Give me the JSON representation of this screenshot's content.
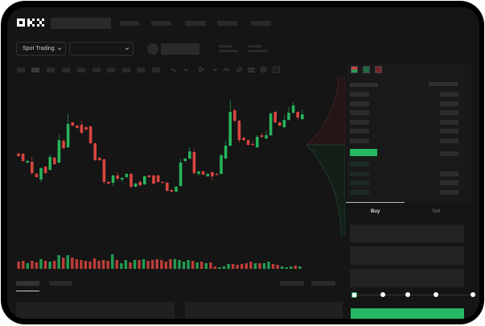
{
  "header": {
    "logo": "OKX",
    "nav_item_count": 5
  },
  "market": {
    "mode_label": "Spot Trading",
    "mode_chevron": "chevron-down-icon",
    "pair_chevron": "chevron-down-icon"
  },
  "toolbar": {
    "icons": [
      "indicator-icon",
      "chevron-down-icon",
      "draw-icon",
      "chevron-down-icon",
      "wave-icon",
      "ruler-icon",
      "camera-icon",
      "settings-icon",
      "fullscreen-icon"
    ]
  },
  "colors": {
    "up": "#27b35a",
    "down": "#d9453f",
    "accent": "#25b862",
    "bg": "#151515"
  },
  "candles": [
    [
      68,
      70,
      64,
      65
    ],
    [
      68,
      69,
      58,
      59
    ],
    [
      57,
      60,
      56,
      59
    ],
    [
      58,
      64,
      42,
      44
    ],
    [
      43,
      44,
      38,
      39
    ],
    [
      36,
      51,
      33,
      50
    ],
    [
      52,
      53,
      43,
      44
    ],
    [
      48,
      67,
      47,
      64
    ],
    [
      63,
      64,
      54,
      55
    ],
    [
      57,
      92,
      56,
      85
    ],
    [
      84,
      87,
      74,
      75
    ],
    [
      76,
      118,
      75,
      105
    ],
    [
      107,
      108,
      102,
      103
    ],
    [
      103,
      104,
      99,
      100
    ],
    [
      104,
      109,
      92,
      94
    ],
    [
      101,
      102,
      97,
      98
    ],
    [
      102,
      103,
      80,
      81
    ],
    [
      81,
      82,
      59,
      60
    ],
    [
      63,
      64,
      59,
      60
    ],
    [
      61,
      62,
      30,
      33
    ],
    [
      33,
      34,
      30,
      31
    ],
    [
      32,
      42,
      28,
      41
    ],
    [
      41,
      45,
      35,
      37
    ],
    [
      36,
      39,
      33,
      38
    ],
    [
      39,
      44,
      38,
      43
    ],
    [
      43,
      44,
      25,
      27
    ],
    [
      27,
      32,
      26,
      31
    ],
    [
      33,
      35,
      27,
      29
    ],
    [
      30,
      41,
      29,
      40
    ],
    [
      41,
      42,
      38,
      39
    ],
    [
      41,
      42,
      30,
      31
    ],
    [
      41,
      43,
      32,
      33
    ],
    [
      33,
      34,
      31,
      32
    ],
    [
      32,
      33,
      21,
      22
    ],
    [
      23,
      24,
      20,
      21
    ],
    [
      21,
      28,
      20,
      27
    ],
    [
      28,
      62,
      27,
      57
    ],
    [
      59,
      63,
      58,
      62
    ],
    [
      62,
      76,
      61,
      71
    ],
    [
      70,
      74,
      42,
      44
    ],
    [
      43,
      47,
      40,
      46
    ],
    [
      46,
      47,
      41,
      42
    ],
    [
      40,
      44,
      39,
      43
    ],
    [
      45,
      46,
      35,
      40
    ],
    [
      43,
      44,
      41,
      42
    ],
    [
      43,
      68,
      42,
      66
    ],
    [
      62,
      84,
      61,
      78
    ],
    [
      78,
      135,
      77,
      120
    ],
    [
      122,
      124,
      107,
      109
    ],
    [
      109,
      110,
      82,
      85
    ],
    [
      88,
      89,
      84,
      85
    ],
    [
      85,
      86,
      78,
      79
    ],
    [
      80,
      84,
      78,
      79
    ],
    [
      76,
      92,
      75,
      89
    ],
    [
      91,
      94,
      88,
      89
    ],
    [
      87,
      97,
      86,
      91
    ],
    [
      91,
      119,
      90,
      118
    ],
    [
      120,
      121,
      106,
      107
    ],
    [
      107,
      108,
      102,
      103
    ],
    [
      101,
      116,
      100,
      110
    ],
    [
      110,
      126,
      109,
      119
    ],
    [
      119,
      132,
      118,
      128
    ],
    [
      120,
      121,
      109,
      113
    ],
    [
      111,
      123,
      110,
      117
    ]
  ],
  "volumes": [
    9,
    10,
    7,
    10,
    8,
    12,
    10,
    9,
    10,
    17,
    14,
    17,
    14,
    12,
    11,
    10,
    9,
    13,
    10,
    11,
    10,
    18,
    11,
    7,
    11,
    8,
    11,
    11,
    12,
    10,
    11,
    12,
    11,
    9,
    12,
    12,
    11,
    9,
    11,
    10,
    8,
    9,
    7,
    8,
    3,
    2,
    3,
    6,
    6,
    5,
    6,
    7,
    9,
    7,
    7,
    7,
    9,
    6,
    5,
    3,
    2,
    3,
    4,
    3
  ],
  "orderbook": {
    "view_icons": [
      "order-book-both-icon",
      "order-book-bids-icon",
      "order-book-asks-icon"
    ],
    "ask_rows": 6,
    "bid_rows": 4
  },
  "trade": {
    "tabs": [
      {
        "label": "Buy"
      },
      {
        "label": "Sell"
      }
    ],
    "active_tab": "Buy",
    "slider_value_percent": 0,
    "slider_steps": [
      0,
      25,
      50,
      75,
      100
    ]
  }
}
